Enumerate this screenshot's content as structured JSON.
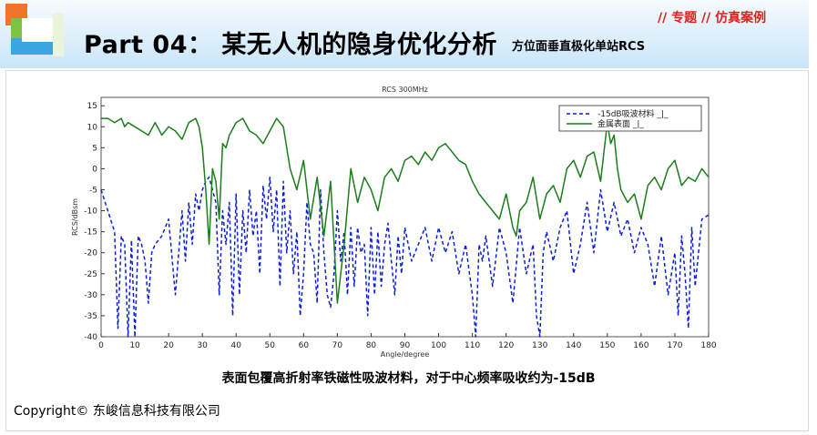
{
  "header": {
    "title": "Part 04： 某无人机的隐身优化分析",
    "subtitle": "方位面垂直极化单站RCS",
    "tagline": "// 专题 // 仿真案例"
  },
  "caption": "表面包覆高折射率铁磁性吸波材料，对于中心频率吸收约为-15dB",
  "copyright": "Copyright© 东峻信息科技有限公司",
  "colors": {
    "absorber": "#0b1fd6",
    "metal": "#1b7d1b",
    "tagline": "#e0201a"
  },
  "chart_data": {
    "type": "line",
    "title": "RCS 300MHz",
    "xlabel": "Angle/degree",
    "ylabel": "RCS/dBsm",
    "xlim": [
      0,
      180
    ],
    "ylim": [
      -40,
      17
    ],
    "xticks": [
      0,
      10,
      20,
      30,
      40,
      50,
      60,
      70,
      80,
      90,
      100,
      110,
      120,
      130,
      140,
      150,
      160,
      170,
      180
    ],
    "yticks": [
      -40,
      -35,
      -30,
      -25,
      -20,
      -15,
      -10,
      -5,
      0,
      5,
      10,
      15
    ],
    "grid": false,
    "legend": "top-right",
    "series": [
      {
        "name": "-15dB吸波材料 _|_",
        "style": "dashed",
        "x": [
          0,
          2,
          4,
          5,
          6,
          7,
          8,
          9,
          10,
          11,
          12,
          13,
          14,
          15,
          16,
          18,
          20,
          22,
          24,
          25,
          26,
          27,
          28,
          29,
          30,
          31,
          32,
          33,
          34,
          35,
          36,
          37,
          38,
          39,
          40,
          41,
          42,
          43,
          44,
          45,
          46,
          47,
          48,
          49,
          50,
          51,
          52,
          53,
          54,
          55,
          56,
          57,
          58,
          59,
          60,
          61,
          62,
          63,
          64,
          65,
          66,
          67,
          68,
          69,
          70,
          71,
          72,
          73,
          74,
          75,
          76,
          77,
          78,
          79,
          80,
          81,
          82,
          83,
          84,
          85,
          86,
          87,
          88,
          89,
          90,
          92,
          94,
          96,
          98,
          100,
          102,
          104,
          106,
          108,
          110,
          111,
          112,
          113,
          114,
          116,
          118,
          120,
          122,
          124,
          126,
          128,
          129,
          130,
          131,
          132,
          134,
          136,
          138,
          140,
          142,
          144,
          146,
          148,
          150,
          152,
          154,
          156,
          158,
          160,
          162,
          164,
          166,
          168,
          170,
          171,
          172,
          173,
          174,
          175,
          176,
          177,
          178,
          180
        ],
        "y": [
          -5,
          -10,
          -15,
          -38,
          -16,
          -18,
          -40,
          -17,
          -40,
          -16,
          -18,
          -22,
          -32,
          -20,
          -18,
          -16,
          -12,
          -30,
          -10,
          -22,
          -8,
          -18,
          -6,
          -10,
          -5,
          -3,
          -2,
          -5,
          -8,
          -30,
          -10,
          -18,
          -8,
          -35,
          -6,
          -30,
          -10,
          -20,
          -5,
          -16,
          -10,
          -25,
          -4,
          -12,
          -2,
          -15,
          -5,
          -28,
          -3,
          -20,
          -10,
          -25,
          -15,
          -35,
          -25,
          -8,
          -18,
          -20,
          -32,
          -5,
          -20,
          -30,
          -33,
          -25,
          -10,
          -22,
          -15,
          -30,
          -14,
          -28,
          -14,
          -20,
          -18,
          -35,
          -14,
          -30,
          -15,
          -28,
          -18,
          -13,
          -22,
          -30,
          -16,
          -25,
          -14,
          -22,
          -18,
          -14,
          -22,
          -14,
          -20,
          -15,
          -25,
          -18,
          -30,
          -40,
          -18,
          -22,
          -16,
          -28,
          -14,
          -20,
          -32,
          -14,
          -25,
          -18,
          -35,
          -40,
          -20,
          -15,
          -22,
          -14,
          -10,
          -25,
          -18,
          -8,
          -20,
          -5,
          -15,
          -8,
          -16,
          -12,
          -20,
          -14,
          -18,
          -28,
          -16,
          -30,
          -20,
          -35,
          -16,
          -25,
          -38,
          -14,
          -28,
          -20,
          -12,
          -11
        ]
      },
      {
        "name": "金属表面 _|_",
        "style": "solid",
        "x": [
          0,
          2,
          4,
          6,
          7,
          8,
          10,
          12,
          14,
          16,
          18,
          20,
          22,
          24,
          26,
          28,
          29,
          30,
          31,
          32,
          33,
          34,
          35,
          36,
          37,
          38,
          40,
          42,
          44,
          46,
          48,
          50,
          52,
          54,
          56,
          58,
          60,
          62,
          64,
          66,
          68,
          70,
          72,
          74,
          76,
          78,
          80,
          82,
          84,
          86,
          88,
          90,
          92,
          94,
          96,
          98,
          100,
          102,
          104,
          106,
          108,
          110,
          112,
          114,
          116,
          118,
          120,
          122,
          123,
          124,
          126,
          128,
          130,
          132,
          134,
          136,
          138,
          140,
          142,
          144,
          146,
          148,
          150,
          151,
          152,
          153,
          154,
          156,
          158,
          160,
          162,
          164,
          166,
          168,
          170,
          172,
          174,
          176,
          178,
          180
        ],
        "y": [
          12,
          12,
          11,
          12,
          10,
          11,
          10,
          9,
          8,
          11,
          8,
          10,
          9,
          7,
          11,
          12,
          10,
          5,
          -5,
          -18,
          0,
          -3,
          -12,
          6,
          5,
          8,
          11,
          12,
          9,
          8,
          6,
          9,
          12,
          10,
          0,
          -5,
          2,
          -12,
          -2,
          -16,
          -3,
          -32,
          -18,
          0,
          -8,
          -2,
          -5,
          -10,
          -2,
          0,
          -3,
          2,
          3,
          1,
          4,
          2,
          5,
          6,
          4,
          2,
          1,
          -3,
          -6,
          -8,
          -10,
          -12,
          -6,
          -14,
          -16,
          -10,
          -8,
          -2,
          -12,
          -6,
          -4,
          -8,
          0,
          2,
          -2,
          3,
          4,
          -3,
          11,
          6,
          8,
          0,
          -5,
          -8,
          -6,
          -12,
          -4,
          -2,
          -5,
          0,
          2,
          -4,
          -2,
          -3,
          0,
          -2
        ]
      }
    ]
  }
}
